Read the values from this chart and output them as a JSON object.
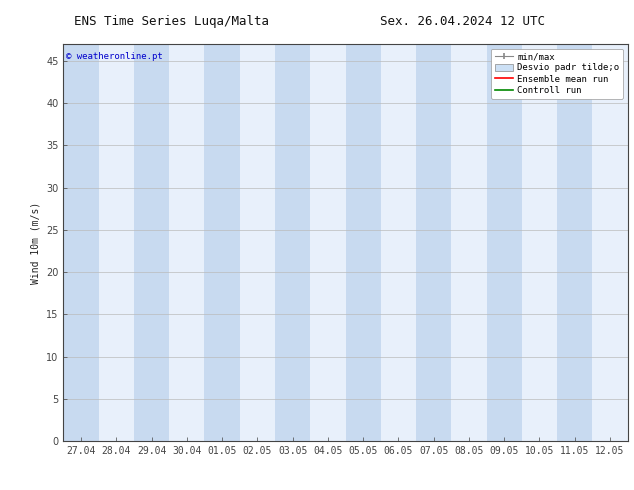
{
  "title_left": "ENS Time Series Luqa/Malta",
  "title_right": "Sex. 26.04.2024 12 UTC",
  "ylabel": "Wind 10m (m/s)",
  "watermark": "© weatheronline.pt",
  "watermark_color": "#0000cc",
  "ylim": [
    0,
    47
  ],
  "yticks": [
    0,
    5,
    10,
    15,
    20,
    25,
    30,
    35,
    40,
    45
  ],
  "x_labels": [
    "27.04",
    "28.04",
    "29.04",
    "30.04",
    "01.05",
    "02.05",
    "03.05",
    "04.05",
    "05.05",
    "06.05",
    "07.05",
    "08.05",
    "09.05",
    "10.05",
    "11.05",
    "12.05"
  ],
  "bg_color": "#ffffff",
  "plot_bg_color": "#e8f0fb",
  "shade_color": "#c8daf0",
  "grid_color": "#bbbbbb",
  "legend_items": [
    {
      "label": "min/max",
      "color": "#888888",
      "style": "errorbar"
    },
    {
      "label": "Desvio padr tilde;o",
      "color": "#aaccee",
      "style": "box"
    },
    {
      "label": "Ensemble mean run",
      "color": "#ff0000",
      "style": "line"
    },
    {
      "label": "Controll run",
      "color": "#008800",
      "style": "line"
    }
  ],
  "title_fontsize": 9,
  "axis_fontsize": 7,
  "tick_fontsize": 7,
  "legend_fontsize": 6.5
}
